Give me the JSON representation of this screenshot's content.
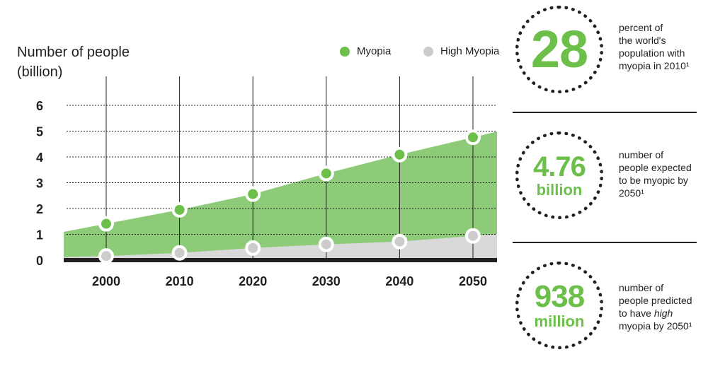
{
  "chart_data": {
    "type": "area",
    "ylabel_line1": "Number of people",
    "ylabel_line2": "(billion)",
    "x": [
      2000,
      2010,
      2020,
      2030,
      2040,
      2050
    ],
    "x_tick_labels": [
      "2000",
      "2010",
      "2020",
      "2030",
      "2040",
      "2050"
    ],
    "y_ticks": [
      0,
      1,
      2,
      3,
      4,
      5,
      6
    ],
    "ylim": [
      0,
      6
    ],
    "series": [
      {
        "name": "Myopia",
        "values": [
          1.41,
          1.95,
          2.56,
          3.36,
          4.09,
          4.76
        ],
        "color": "#6cc04a",
        "fill": "#8dcb78"
      },
      {
        "name": "High Myopia",
        "values": [
          0.16,
          0.28,
          0.47,
          0.61,
          0.72,
          0.94
        ],
        "color": "#cccccc",
        "fill": "#d9d9da"
      }
    ],
    "grid": "horizontal dotted, vertical solid",
    "legend_position": "top-right"
  },
  "stats": [
    {
      "number": "28",
      "unit": "",
      "line1": "percent of",
      "line2": "the world's",
      "line3": "population with",
      "line4": "myopia in 2010¹"
    },
    {
      "number": "4.76",
      "unit": "billion",
      "line1": "number of",
      "line2": "people expected",
      "line3": "to be myopic by",
      "line4": "2050¹"
    },
    {
      "number": "938",
      "unit": "million",
      "line1": "number of",
      "line2": "people predicted",
      "line3_pre": "to have ",
      "line3_em": "high",
      "line4": "myopia by 2050¹"
    }
  ],
  "colors": {
    "accent": "#6cc04a",
    "text": "#231f20"
  }
}
